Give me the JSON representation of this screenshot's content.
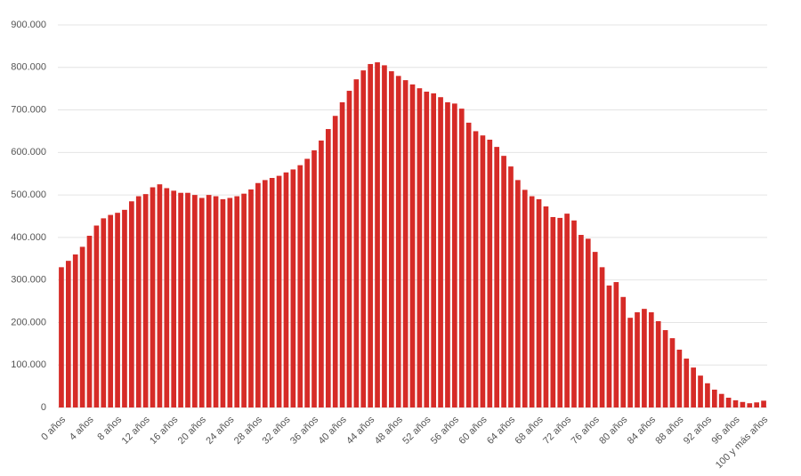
{
  "chart_data": {
    "type": "bar",
    "categories": [
      "0 años",
      null,
      null,
      null,
      "4 años",
      null,
      null,
      null,
      "8 años",
      null,
      null,
      null,
      "12 años",
      null,
      null,
      null,
      "16 años",
      null,
      null,
      null,
      "20 años",
      null,
      null,
      null,
      "24 años",
      null,
      null,
      null,
      "28 años",
      null,
      null,
      null,
      "32 años",
      null,
      null,
      null,
      "36 años",
      null,
      null,
      null,
      "40 años",
      null,
      null,
      null,
      "44 años",
      null,
      null,
      null,
      "48 años",
      null,
      null,
      null,
      "52 años",
      null,
      null,
      null,
      "56 años",
      null,
      null,
      null,
      "60 años",
      null,
      null,
      null,
      "64 años",
      null,
      null,
      null,
      "68 años",
      null,
      null,
      null,
      "72 años",
      null,
      null,
      null,
      "76 años",
      null,
      null,
      null,
      "80 años",
      null,
      null,
      null,
      "84 años",
      null,
      null,
      null,
      "88 años",
      null,
      null,
      null,
      "92 años",
      null,
      null,
      null,
      "96 años",
      null,
      null,
      null,
      "100 y más años"
    ],
    "values": [
      330000,
      345000,
      360000,
      378000,
      404000,
      428000,
      445000,
      453000,
      458000,
      465000,
      485000,
      497000,
      502000,
      518000,
      525000,
      516000,
      510000,
      505000,
      505000,
      500000,
      493000,
      500000,
      497000,
      490000,
      493000,
      497000,
      503000,
      513000,
      528000,
      535000,
      540000,
      545000,
      553000,
      560000,
      570000,
      585000,
      605000,
      628000,
      655000,
      686000,
      718000,
      745000,
      772000,
      793000,
      808000,
      812000,
      805000,
      791000,
      780000,
      770000,
      760000,
      751000,
      743000,
      739000,
      730000,
      718000,
      715000,
      703000,
      670000,
      650000,
      640000,
      630000,
      613000,
      592000,
      567000,
      535000,
      512000,
      497000,
      490000,
      473000,
      448000,
      446000,
      456000,
      440000,
      406000,
      397000,
      366000,
      330000,
      287000,
      295000,
      260000,
      211000,
      224000,
      232000,
      224000,
      203000,
      182000,
      163000,
      136000,
      115000,
      94000,
      75000,
      57000,
      42000,
      32000,
      23000,
      17000,
      13000,
      10000,
      12000,
      16000
    ],
    "color": "#d62b27",
    "ylim": [
      0,
      900000
    ],
    "yticks": [
      0,
      {
        "value": 100000,
        "label": "100.000"
      },
      {
        "value": 200000,
        "label": "200.000"
      },
      {
        "value": 300000,
        "label": "300.000"
      },
      {
        "value": 400000,
        "label": "400.000"
      },
      {
        "value": 500000,
        "label": "500.000"
      },
      {
        "value": 600000,
        "label": "600.000"
      },
      {
        "value": 700000,
        "label": "700.000"
      },
      {
        "value": 800000,
        "label": "800.000"
      },
      {
        "value": 900000,
        "label": "900.000"
      }
    ],
    "grid": true
  }
}
